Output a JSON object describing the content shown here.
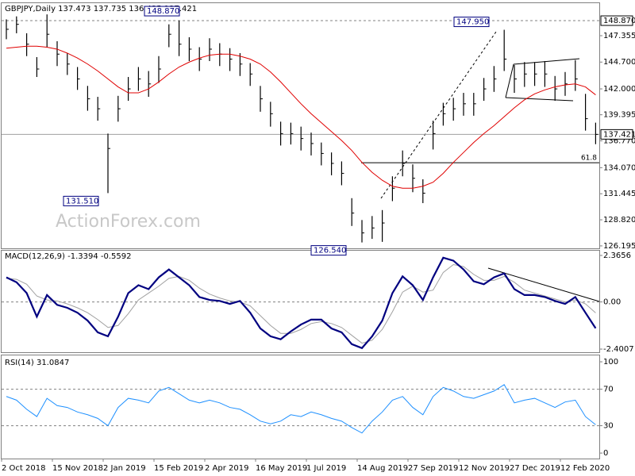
{
  "chart_data": [
    {
      "type": "ohlc",
      "title": "GBPJPY,Daily  137.473 137.735 136.435 137.421",
      "watermark": "ActionForex.com",
      "categories": [
        "2 Oct 2018",
        null,
        null,
        null,
        null,
        "15 Nov 2018",
        null,
        null,
        null,
        null,
        "2 Jan 2019",
        null,
        null,
        null,
        null,
        "15 Feb 2019",
        null,
        null,
        null,
        null,
        "2 Apr 2019",
        null,
        null,
        null,
        null,
        "16 May 2019",
        null,
        null,
        null,
        null,
        "1 Jul 2019",
        null,
        null,
        null,
        null,
        "14 Aug 2019",
        null,
        null,
        null,
        null,
        "27 Sep 2019",
        null,
        null,
        null,
        null,
        "12 Nov 2019",
        null,
        null,
        null,
        null,
        "27 Dec 2019",
        null,
        null,
        null,
        null,
        "12 Feb 2020",
        null,
        null,
        null
      ],
      "high": [
        149.0,
        149.3,
        147.6,
        145.2,
        149.5,
        146.8,
        145.6,
        144.2,
        142.3,
        141.2,
        137.5,
        141.3,
        143.2,
        144.2,
        143.8,
        145.3,
        148.5,
        148.87,
        147.2,
        146.2,
        147.1,
        146.6,
        146.1,
        145.6,
        144.6,
        142.3,
        140.7,
        138.7,
        138.6,
        138.2,
        137.6,
        136.6,
        135.6,
        134.7,
        131.0,
        128.8,
        129.2,
        129.8,
        133.2,
        135.8,
        134.4,
        132.9,
        138.8,
        140.6,
        141.1,
        141.6,
        141.6,
        143.1,
        144.3,
        147.95,
        144.4,
        144.7,
        144.7,
        144.8,
        143.3,
        143.7,
        144.9,
        141.5,
        138.6
      ],
      "low": [
        147.0,
        147.6,
        145.3,
        143.2,
        146.2,
        144.3,
        143.4,
        141.9,
        139.8,
        138.8,
        131.51,
        138.7,
        140.8,
        141.8,
        141.2,
        142.6,
        146.2,
        145.3,
        144.8,
        143.8,
        144.8,
        144.3,
        143.8,
        143.3,
        142.3,
        139.7,
        138.2,
        136.3,
        136.4,
        135.8,
        135.3,
        134.3,
        133.3,
        132.3,
        128.2,
        126.54,
        126.9,
        126.6,
        130.7,
        133.2,
        131.6,
        130.5,
        135.9,
        138.3,
        138.8,
        139.3,
        139.3,
        140.8,
        141.7,
        143.8,
        141.6,
        142.2,
        142.3,
        142.2,
        140.8,
        141.3,
        141.8,
        137.8,
        136.435
      ],
      "close": [
        148.0,
        148.5,
        146.5,
        144.0,
        147.5,
        145.5,
        144.5,
        143.0,
        141.0,
        140.0,
        136.0,
        140.0,
        142.0,
        143.0,
        142.5,
        144.0,
        147.5,
        146.5,
        146.0,
        145.0,
        146.0,
        145.5,
        145.0,
        144.5,
        143.5,
        141.0,
        139.5,
        137.5,
        137.5,
        137.0,
        136.5,
        135.5,
        134.5,
        133.5,
        129.5,
        127.5,
        128.0,
        128.5,
        132.0,
        134.5,
        133.0,
        131.5,
        137.5,
        139.5,
        140.0,
        140.5,
        140.5,
        142.0,
        143.0,
        145.0,
        143.0,
        143.5,
        143.5,
        143.5,
        142.0,
        142.5,
        143.0,
        139.0,
        137.421
      ],
      "bar_color": "#000000",
      "ma_values": [
        146.1,
        146.2,
        146.3,
        146.3,
        146.2,
        146.0,
        145.6,
        145.1,
        144.5,
        143.8,
        143.0,
        142.2,
        141.6,
        141.6,
        142.0,
        142.7,
        143.5,
        144.2,
        144.7,
        145.1,
        145.4,
        145.5,
        145.5,
        145.3,
        145.0,
        144.5,
        143.7,
        142.7,
        141.6,
        140.5,
        139.5,
        138.6,
        137.7,
        136.8,
        135.8,
        134.6,
        133.6,
        132.8,
        132.2,
        132.0,
        132.0,
        132.2,
        132.6,
        133.5,
        134.6,
        135.6,
        136.6,
        137.5,
        138.3,
        139.2,
        140.1,
        140.9,
        141.5,
        141.9,
        142.2,
        142.4,
        142.5,
        142.2,
        141.4
      ],
      "ma_color": "#e00000",
      "ylim": [
        125.95,
        150.63
      ],
      "yticks": [
        147.355,
        {
          "value": 144.7,
          "label": "144.700"
        },
        {
          "value": 142.0,
          "label": "142.000"
        },
        139.395,
        {
          "value": 136.77,
          "label": "136.770"
        },
        {
          "value": 134.07,
          "label": "134.070"
        },
        131.445,
        {
          "value": 128.82,
          "label": "128.820"
        },
        126.195
      ],
      "hline": {
        "value": 148.87,
        "label": "148.870"
      },
      "last": {
        "value": 137.421,
        "label": "137.421"
      },
      "fib": {
        "value": 134.57,
        "label": "61.8"
      },
      "annotations": [
        {
          "label": "148.870",
          "value": 148.87
        },
        {
          "label": "131.510",
          "value": 131.51
        },
        {
          "label": "126.540",
          "value": 126.54
        },
        {
          "label": "147.950",
          "value": 147.95
        }
      ]
    },
    {
      "type": "line",
      "title": "MACD(12,26,9) -1.3394 -0.5592",
      "series": [
        {
          "color": "#000080",
          "values": [
            1.25,
            1.0,
            0.45,
            -0.75,
            0.35,
            -0.15,
            -0.3,
            -0.55,
            -0.95,
            -1.55,
            -1.75,
            -0.75,
            0.45,
            0.85,
            0.65,
            1.25,
            1.65,
            1.25,
            0.85,
            0.25,
            0.1,
            0.05,
            -0.1,
            0.05,
            -0.55,
            -1.35,
            -1.75,
            -1.9,
            -1.5,
            -1.15,
            -0.9,
            -0.9,
            -1.35,
            -1.55,
            -2.15,
            -2.35,
            -1.75,
            -0.95,
            0.45,
            1.3,
            0.85,
            0.1,
            1.25,
            2.25,
            2.1,
            1.65,
            1.05,
            0.9,
            1.25,
            1.45,
            0.65,
            0.35,
            0.35,
            0.25,
            0.05,
            -0.1,
            0.25,
            -0.55,
            -1.3394
          ]
        },
        {
          "color": "#a0a0a0",
          "values": [
            1.2,
            1.15,
            0.9,
            0.3,
            0.1,
            0.05,
            -0.1,
            -0.3,
            -0.55,
            -0.9,
            -1.3,
            -1.2,
            -0.6,
            0.1,
            0.45,
            0.8,
            1.2,
            1.3,
            1.1,
            0.7,
            0.4,
            0.2,
            0.05,
            0.0,
            -0.2,
            -0.7,
            -1.2,
            -1.6,
            -1.6,
            -1.4,
            -1.1,
            -1.0,
            -1.1,
            -1.3,
            -1.7,
            -2.1,
            -1.95,
            -1.4,
            -0.5,
            0.5,
            0.8,
            0.5,
            0.6,
            1.5,
            1.9,
            1.8,
            1.4,
            1.1,
            1.1,
            1.3,
            1.0,
            0.6,
            0.45,
            0.3,
            0.15,
            0.0,
            0.1,
            -0.1,
            -0.5592
          ]
        }
      ],
      "ylim": [
        -2.561,
        2.607
      ],
      "yticks": [
        2.3656,
        {
          "value": 0,
          "label": "0.00"
        },
        -2.4007
      ]
    },
    {
      "type": "line",
      "title": "RSI(14) 31.0847",
      "series": [
        {
          "color": "#1e90ff",
          "values": [
            62,
            58,
            48,
            40,
            60,
            52,
            50,
            45,
            42,
            38,
            30,
            50,
            60,
            58,
            55,
            68,
            72,
            65,
            58,
            55,
            58,
            55,
            50,
            48,
            42,
            35,
            32,
            35,
            42,
            40,
            45,
            42,
            38,
            35,
            28,
            22,
            35,
            45,
            58,
            62,
            50,
            42,
            62,
            72,
            68,
            62,
            60,
            64,
            68,
            75,
            55,
            58,
            60,
            55,
            50,
            56,
            58,
            40,
            31.0847
          ]
        }
      ],
      "ylim": [
        -6,
        107
      ],
      "yticks": [
        100,
        70,
        30,
        0
      ],
      "levels": [
        70,
        30
      ]
    }
  ]
}
